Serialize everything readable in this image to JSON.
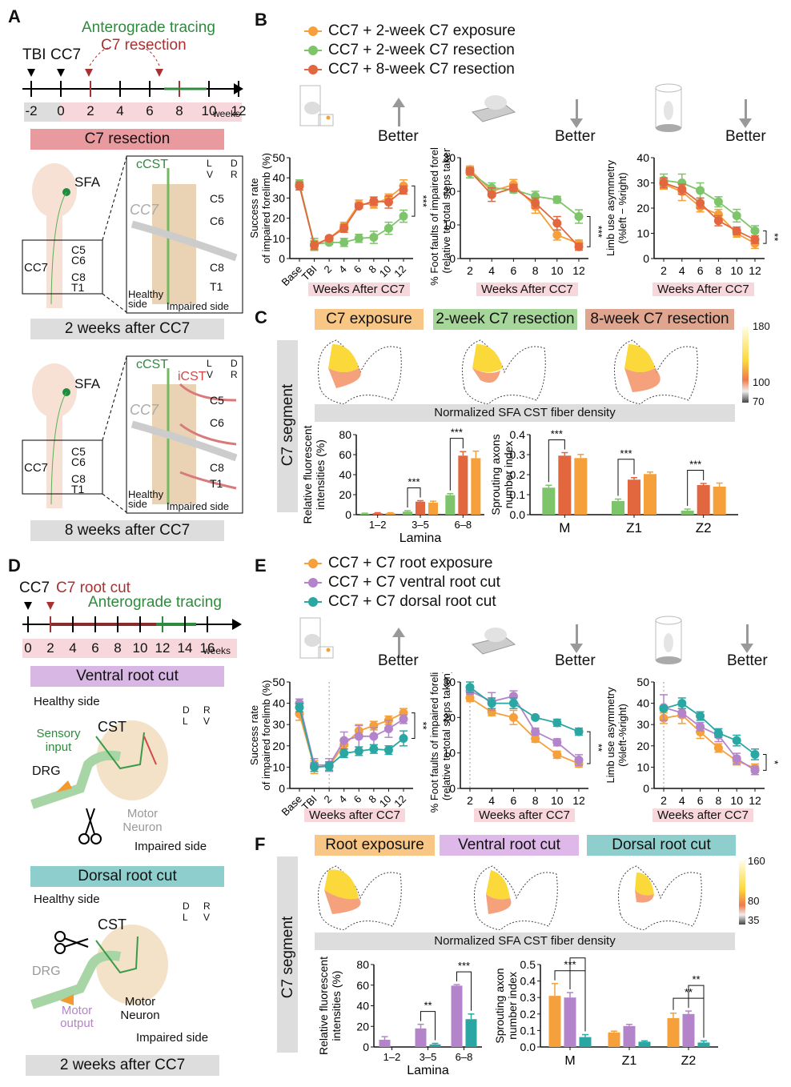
{
  "panels": {
    "A": {
      "label": "A",
      "timeline": {
        "events": [
          "TBI",
          "CC7"
        ],
        "red_label": "C7 resection",
        "green_label": "Anterograde tracing",
        "ticks": [
          "-2",
          "0",
          "2",
          "4",
          "6",
          "8",
          "10",
          "12"
        ],
        "unit": "weeks"
      },
      "group_bar": "C7 resection",
      "diagram1": {
        "sfa": "SFA",
        "cc7": "CC7",
        "roots": [
          "C5",
          "C6",
          "C8",
          "T1"
        ],
        "inset_tract": "cCST",
        "inset_cc7": "CC7",
        "orient": [
          "L",
          "D",
          "V",
          "R"
        ],
        "healthy": "Healthy side",
        "impaired": "Impaired side",
        "caption": "2 weeks after CC7"
      },
      "diagram2": {
        "sfa": "SFA",
        "cc7": "CC7",
        "roots": [
          "C5",
          "C6",
          "C8",
          "T1"
        ],
        "inset_tract": "cCST",
        "inset_tract2": "iCST",
        "inset_cc7": "CC7",
        "orient": [
          "L",
          "D",
          "V",
          "R"
        ],
        "healthy": "Healthy side",
        "impaired": "Impaired side",
        "caption": "8 weeks after CC7"
      }
    },
    "B": {
      "label": "B",
      "legend": [
        {
          "name": "CC7 + 2-week C7 exposure",
          "color": "#F5A03A"
        },
        {
          "name": "CC7 + 2-week C7 resection",
          "color": "#7DC46A"
        },
        {
          "name": "CC7 + 8-week C7 resection",
          "color": "#E2663E"
        }
      ],
      "better": "Better",
      "xlabel": "Weeks After CC7"
    },
    "C": {
      "label": "C",
      "side_label": "C7 segment",
      "groups": [
        {
          "name": "C7 exposure",
          "color": "#F9C785"
        },
        {
          "name": "2-week C7 resection",
          "color": "#A7D69B"
        },
        {
          "name": "8-week C7 resection",
          "color": "#E0A58F"
        }
      ],
      "colorbar": [
        "180",
        "100",
        "70"
      ],
      "density_caption": "Normalized SFA CST fiber density"
    },
    "D": {
      "label": "D",
      "timeline": {
        "events": [
          "CC7"
        ],
        "red_label": "C7 root cut",
        "green_label": "Anterograde tracing",
        "ticks": [
          "0",
          "2",
          "4",
          "6",
          "8",
          "10",
          "12",
          "14",
          "16"
        ],
        "unit": "weeks"
      },
      "ventral": {
        "bar": "Ventral root cut",
        "healthy": "Healthy side",
        "cst": "CST",
        "sensory": "Sensory input",
        "drg": "DRG",
        "motor": "Motor Neuron",
        "impaired": "Impaired side",
        "orient": [
          "D",
          "R",
          "L",
          "V"
        ]
      },
      "dorsal": {
        "bar": "Dorsal root cut",
        "healthy": "Healthy side",
        "cst": "CST",
        "drg": "DRG",
        "motor_out": "Motor output",
        "motor": "Motor Neuron",
        "impaired": "Impaired side",
        "orient": [
          "D",
          "R",
          "L",
          "V"
        ]
      },
      "caption": "2 weeks after CC7"
    },
    "E": {
      "label": "E",
      "legend": [
        {
          "name": "CC7 + C7 root exposure",
          "color": "#F5A03A"
        },
        {
          "name": "CC7 + C7 ventral root cut",
          "color": "#B384C9"
        },
        {
          "name": "CC7 + C7 dorsal root cut",
          "color": "#2AA7A3"
        }
      ],
      "better": "Better",
      "xlabel": "Weeks after CC7"
    },
    "F": {
      "label": "F",
      "side_label": "C7 segment",
      "groups": [
        {
          "name": "Root exposure",
          "color": "#F9C785"
        },
        {
          "name": "Ventral root cut",
          "color": "#DDB8E8"
        },
        {
          "name": "Dorsal root cut",
          "color": "#8ECFCD"
        }
      ],
      "colorbar": [
        "160",
        "80",
        "35"
      ],
      "density_caption": "Normalized SFA CST fiber density"
    }
  },
  "chart_data": [
    {
      "id": "B1",
      "type": "line",
      "ylabel": "Success rate of impaired forelimb (%)",
      "xlabel": "Weeks After CC7",
      "categories": [
        "Base",
        "TBI",
        "2",
        "4",
        "6",
        "8",
        "10",
        "12"
      ],
      "ylim": [
        0,
        50
      ],
      "yticks": [
        0,
        10,
        20,
        30,
        40,
        50
      ],
      "significance": "***",
      "series": [
        {
          "name": "CC7 + 2-week C7 exposure",
          "color": "#F5A03A",
          "values": [
            36,
            7,
            10,
            16,
            27,
            27,
            30,
            36
          ],
          "err": [
            2,
            2,
            1,
            2,
            2,
            2,
            2,
            3
          ]
        },
        {
          "name": "CC7 + 2-week C7 resection",
          "color": "#7DC46A",
          "values": [
            37,
            7,
            8,
            8,
            10,
            10.5,
            15,
            21
          ],
          "err": [
            2,
            3,
            1,
            2,
            2,
            3,
            3,
            3
          ]
        },
        {
          "name": "CC7 + 8-week C7 resection",
          "color": "#E2663E",
          "values": [
            36,
            6.5,
            10,
            15,
            26,
            28.5,
            28,
            34
          ],
          "err": [
            2,
            2,
            1,
            2,
            1,
            2,
            3,
            2
          ]
        }
      ]
    },
    {
      "id": "B2",
      "type": "line",
      "ylabel": "% Foot faults of impaired forelimb (relative to total steps taken)",
      "xlabel": "Weeks After CC7",
      "categories": [
        "2",
        "4",
        "6",
        "8",
        "10",
        "12"
      ],
      "ylim": [
        0,
        30
      ],
      "yticks": [
        0,
        10,
        20,
        30
      ],
      "significance": "***",
      "series": [
        {
          "name": "CC7 + 2-week C7 exposure",
          "color": "#F5A03A",
          "values": [
            26.5,
            20,
            22,
            15.5,
            7,
            4.5
          ],
          "err": [
            1,
            1.5,
            1.5,
            2,
            1.5,
            1
          ]
        },
        {
          "name": "CC7 + 2-week C7 resection",
          "color": "#7DC46A",
          "values": [
            25.5,
            21,
            20.5,
            18.5,
            17.5,
            12.5
          ],
          "err": [
            1.5,
            1.5,
            1,
            1.5,
            1,
            2
          ]
        },
        {
          "name": "CC7 + 8-week C7 resection",
          "color": "#E2663E",
          "values": [
            26,
            19,
            21,
            16.5,
            10.5,
            3.5
          ],
          "err": [
            1,
            2,
            1,
            1.5,
            2,
            1
          ]
        }
      ]
    },
    {
      "id": "B3",
      "type": "line",
      "ylabel": "Limb use asymmetry (%left − %right)",
      "xlabel": "Weeks After CC7",
      "categories": [
        "2",
        "4",
        "6",
        "8",
        "10",
        "12"
      ],
      "ylim": [
        0,
        40
      ],
      "yticks": [
        0,
        10,
        20,
        30,
        40
      ],
      "significance": "**",
      "series": [
        {
          "name": "CC7 + 2-week C7 exposure",
          "color": "#F5A03A",
          "values": [
            29.5,
            26.5,
            20.5,
            17.5,
            10,
            6
          ],
          "err": [
            2,
            3.5,
            2,
            2,
            1.5,
            2
          ]
        },
        {
          "name": "CC7 + 2-week C7 resection",
          "color": "#7DC46A",
          "values": [
            31,
            30,
            27,
            22.5,
            17,
            11
          ],
          "err": [
            2.5,
            3.5,
            3,
            2,
            2.5,
            2
          ]
        },
        {
          "name": "CC7 + 8-week C7 resection",
          "color": "#E2663E",
          "values": [
            30,
            27.5,
            22,
            15,
            11,
            7.5
          ],
          "err": [
            2,
            2,
            2,
            2,
            1.5,
            1.5
          ]
        }
      ]
    },
    {
      "id": "C1",
      "type": "bar",
      "ylabel": "Relative fluorescent intensities (%)",
      "xlabel": "Lamina",
      "categories": [
        "1–2",
        "3–5",
        "6–8"
      ],
      "ylim": [
        0,
        80
      ],
      "yticks": [
        0,
        20,
        40,
        60,
        80
      ],
      "series": [
        {
          "name": "2-week C7 resection",
          "color": "#7DC46A",
          "values": [
            1,
            3,
            19.5
          ],
          "err": [
            0.5,
            1,
            1.5
          ]
        },
        {
          "name": "8-week C7 resection",
          "color": "#E2663E",
          "values": [
            1.5,
            13,
            59
          ],
          "err": [
            0.5,
            1,
            4
          ]
        },
        {
          "name": "C7 exposure",
          "color": "#F5A03A",
          "values": [
            1.5,
            12,
            56.5
          ],
          "err": [
            0.5,
            1.5,
            7
          ]
        }
      ],
      "brackets": [
        {
          "category": "3–5",
          "from": 0,
          "to": 1,
          "label": "***"
        },
        {
          "category": "6–8",
          "from": 0,
          "to": 1,
          "label": "***"
        }
      ]
    },
    {
      "id": "C2",
      "type": "bar",
      "ylabel": "Sprouting axons number index",
      "xlabel": "",
      "categories": [
        "M",
        "Z1",
        "Z2"
      ],
      "ylim": [
        0,
        0.4
      ],
      "yticks": [
        0.0,
        0.1,
        0.2,
        0.3,
        0.4
      ],
      "series": [
        {
          "name": "2-week C7 resection",
          "color": "#7DC46A",
          "values": [
            0.135,
            0.068,
            0.02
          ],
          "err": [
            0.012,
            0.01,
            0.008
          ]
        },
        {
          "name": "8-week C7 resection",
          "color": "#E2663E",
          "values": [
            0.295,
            0.175,
            0.148
          ],
          "err": [
            0.015,
            0.01,
            0.008
          ]
        },
        {
          "name": "C7 exposure",
          "color": "#F5A03A",
          "values": [
            0.283,
            0.203,
            0.14
          ],
          "err": [
            0.018,
            0.01,
            0.018
          ]
        }
      ],
      "brackets": [
        {
          "category": "M",
          "from": 0,
          "to": 1,
          "label": "***"
        },
        {
          "category": "Z1",
          "from": 0,
          "to": 1,
          "label": "***"
        },
        {
          "category": "Z2",
          "from": 0,
          "to": 1,
          "label": "***"
        }
      ]
    },
    {
      "id": "E1",
      "type": "line",
      "ylabel": "Success rate of impaired forelimb (%)",
      "xlabel": "Weeks after CC7",
      "categories": [
        "Base",
        "TBI",
        "2",
        "4",
        "6",
        "8",
        "10",
        "12"
      ],
      "ylim": [
        0,
        50
      ],
      "yticks": [
        0,
        10,
        20,
        30,
        40,
        50
      ],
      "significance": "**",
      "dashed_at": "2",
      "series": [
        {
          "name": "CC7 + C7 root exposure",
          "color": "#F5A03A",
          "values": [
            35,
            10,
            10.5,
            20.5,
            27,
            29.5,
            32,
            35.5
          ],
          "err": [
            3,
            3,
            2,
            2,
            3,
            2,
            2,
            2
          ]
        },
        {
          "name": "CC7 + C7 ventral root cut",
          "color": "#B384C9",
          "values": [
            40,
            11,
            11,
            22.5,
            24.5,
            24.5,
            28,
            32.5
          ],
          "err": [
            2,
            3,
            3,
            4,
            5,
            4,
            4,
            2
          ]
        },
        {
          "name": "CC7 + C7 dorsal root cut",
          "color": "#2AA7A3",
          "values": [
            38,
            10,
            10.5,
            16.5,
            17.5,
            18.5,
            18,
            23.5
          ],
          "err": [
            2,
            2,
            2,
            2,
            2,
            2,
            2,
            3.5
          ]
        }
      ]
    },
    {
      "id": "E2",
      "type": "line",
      "ylabel": "% Foot faults of impaired forelimb (relative to total steps taken)",
      "xlabel": "Weeks after CC7",
      "categories": [
        "2",
        "4",
        "6",
        "8",
        "10",
        "12"
      ],
      "ylim": [
        0,
        30
      ],
      "yticks": [
        0,
        10,
        20,
        30
      ],
      "significance": "**",
      "dashed_at": "2",
      "series": [
        {
          "name": "CC7 + C7 root exposure",
          "color": "#F5A03A",
          "values": [
            25.5,
            21.5,
            20,
            14,
            9.5,
            7
          ],
          "err": [
            1,
            1,
            2,
            1,
            1,
            1
          ]
        },
        {
          "name": "CC7 + C7 ventral root cut",
          "color": "#B384C9",
          "values": [
            27.5,
            24.5,
            26,
            16,
            13,
            8
          ],
          "err": [
            1,
            2.5,
            1.5,
            1,
            1,
            1.5
          ]
        },
        {
          "name": "CC7 + C7 dorsal root cut",
          "color": "#2AA7A3",
          "values": [
            28.5,
            24,
            24,
            20,
            18.5,
            16
          ],
          "err": [
            1.5,
            1.5,
            1.5,
            0.5,
            1,
            1
          ]
        }
      ]
    },
    {
      "id": "E3",
      "type": "line",
      "ylabel": "Limb use asymmetry (%left-%right)",
      "xlabel": "Weeks after CC7",
      "categories": [
        "2",
        "4",
        "6",
        "8",
        "10",
        "12"
      ],
      "ylim": [
        0,
        50
      ],
      "yticks": [
        0,
        10,
        20,
        30,
        40,
        50
      ],
      "significance": "*",
      "dashed_at": "2",
      "series": [
        {
          "name": "CC7 + C7 root exposure",
          "color": "#F5A03A",
          "values": [
            33,
            34.5,
            26.5,
            19,
            13,
            9.5
          ],
          "err": [
            2.5,
            4,
            3,
            2,
            2,
            2
          ]
        },
        {
          "name": "CC7 + C7 ventral root cut",
          "color": "#B384C9",
          "values": [
            38,
            35.5,
            29,
            25,
            14,
            8.5
          ],
          "err": [
            6,
            2,
            2,
            3,
            2.5,
            2
          ]
        },
        {
          "name": "CC7 + C7 dorsal root cut",
          "color": "#2AA7A3",
          "values": [
            37.5,
            40,
            34,
            26,
            22.5,
            16
          ],
          "err": [
            1,
            2.5,
            2,
            2,
            2.5,
            2.5
          ]
        }
      ]
    },
    {
      "id": "F1",
      "type": "bar",
      "ylabel": "Relative fluorescent intensities (%)",
      "xlabel": "Lamina",
      "categories": [
        "1–2",
        "3–5",
        "6–8"
      ],
      "ylim": [
        0,
        80
      ],
      "yticks": [
        0,
        20,
        40,
        60,
        80
      ],
      "series": [
        {
          "name": "Ventral root cut",
          "color": "#B384C9",
          "values": [
            7,
            18,
            59.5
          ],
          "err": [
            3,
            4,
            1
          ]
        },
        {
          "name": "Dorsal root cut",
          "color": "#2AA7A3",
          "values": [
            0,
            2.5,
            27
          ],
          "err": [
            0,
            1,
            5
          ]
        }
      ],
      "brackets": [
        {
          "category": "3–5",
          "from": 0,
          "to": 1,
          "label": "**"
        },
        {
          "category": "6–8",
          "from": 0,
          "to": 1,
          "label": "***"
        }
      ]
    },
    {
      "id": "F2",
      "type": "bar",
      "ylabel": "Sprouting axon number index",
      "xlabel": "",
      "categories": [
        "M",
        "Z1",
        "Z2"
      ],
      "ylim": [
        0,
        0.5
      ],
      "yticks": [
        0.0,
        0.1,
        0.2,
        0.3,
        0.4,
        0.5
      ],
      "series": [
        {
          "name": "Root exposure",
          "color": "#F5A03A",
          "values": [
            0.31,
            0.088,
            0.175
          ],
          "err": [
            0.075,
            0.008,
            0.03
          ]
        },
        {
          "name": "Ventral root cut",
          "color": "#B384C9",
          "values": [
            0.3,
            0.127,
            0.2
          ],
          "err": [
            0.03,
            0.01,
            0.018
          ]
        },
        {
          "name": "Dorsal root cut",
          "color": "#2AA7A3",
          "values": [
            0.06,
            0.032,
            0.027
          ],
          "err": [
            0.015,
            0.005,
            0.01
          ]
        }
      ],
      "brackets": [
        {
          "category": "M",
          "from": 0,
          "to": 2,
          "label": "***"
        },
        {
          "category": "M",
          "from": 1,
          "to": 2,
          "label": "***"
        },
        {
          "category": "Z2",
          "from": 0,
          "to": 2,
          "label": "**"
        },
        {
          "category": "Z2",
          "from": 1,
          "to": 2,
          "label": "**"
        }
      ]
    }
  ]
}
